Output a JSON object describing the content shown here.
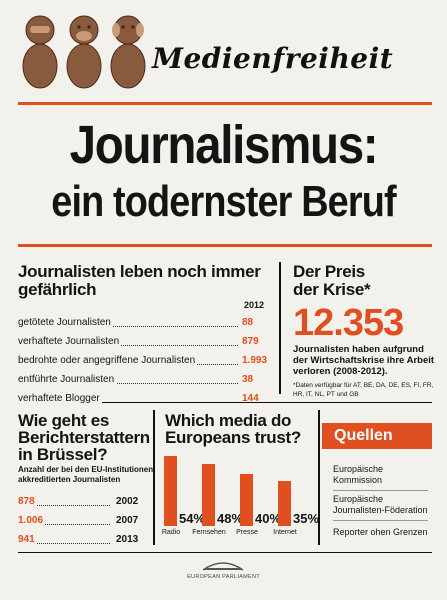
{
  "header": {
    "masthead": "Medienfreiheit"
  },
  "headline": {
    "line1": "Journalismus:",
    "line2": "ein todernster Beruf"
  },
  "danger": {
    "title_line1": "Journalisten leben noch immer",
    "title_line2": "gefährlich",
    "year": "2012",
    "rows": [
      {
        "label": "getötete Journalisten",
        "value": "88"
      },
      {
        "label": "verhaftete Journalisten",
        "value": "879"
      },
      {
        "label": "bedrohte oder angegriffene Journalisten",
        "value": "1.993"
      },
      {
        "label": "entführte Journalisten",
        "value": "38"
      },
      {
        "label": "verhaftete Blogger",
        "value": "144"
      }
    ]
  },
  "crisis": {
    "title_line1": "Der Preis",
    "title_line2": "der Krise*",
    "number": "12.353",
    "desc_line1": "Journalisten haben aufgrund",
    "desc_line2": "der Wirtschaftskrise ihre Arbeit",
    "desc_line3": "verloren (2008-2012).",
    "footnote_line1": "*Daten verfügbar für AT, BE, DA, DE,  ES, FI, FR,",
    "footnote_line2": "HR, IT, NL, PT und GB"
  },
  "brussels": {
    "title_line1": "Wie geht es",
    "title_line2": "Berichterstattern",
    "title_line3": "in Brüssel?",
    "sub_line1": "Anzahl der bei den EU-Institutionen",
    "sub_line2": "akkreditierten Journalisten",
    "rows": [
      {
        "value": "878",
        "year": "2002"
      },
      {
        "value": "1.006",
        "year": "2007"
      },
      {
        "value": "941",
        "year": "2013"
      }
    ]
  },
  "trust": {
    "title_line1": "Which media do",
    "title_line2": "Europeans trust?",
    "chart_data": {
      "type": "bar",
      "categories": [
        "Radio",
        "Fernsehen",
        "Presse",
        "Internet"
      ],
      "values": [
        54,
        48,
        40,
        35
      ],
      "labels": [
        "54%",
        "48%",
        "40%",
        "35%"
      ],
      "ylim": [
        0,
        60
      ]
    }
  },
  "sources": {
    "title": "Quellen",
    "items": [
      {
        "line1": "Europäische",
        "line2": "Kommission"
      },
      {
        "line1": "Europäische",
        "line2": "Journalisten-Föderation"
      },
      {
        "line1": "Reporter ohen Grenzen",
        "line2": ""
      }
    ]
  },
  "footer": {
    "logo_text": "EUROPEAN PARLIAMENT"
  },
  "colors": {
    "accent": "#e04f1f",
    "background": "#f3f1ec",
    "text": "#141414"
  }
}
